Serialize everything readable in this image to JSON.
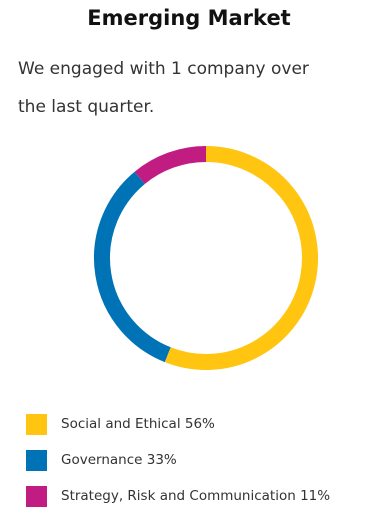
{
  "header": {
    "title": "Emerging Market",
    "intro_line1": "We engaged with 1 company over",
    "intro_line2": "the last quarter."
  },
  "legend": [
    "Social and Ethical 56%",
    "Governance 33%",
    "Strategy, Risk and Communication 11%"
  ],
  "chart_data": {
    "type": "pie",
    "style": "donut",
    "legend_position": "bottom-left",
    "categories": [
      "Social and Ethical",
      "Governance",
      "Strategy, Risk and Communication"
    ],
    "values": [
      56,
      33,
      11
    ],
    "colors": [
      "#ffc510",
      "#0073b7",
      "#c01c82"
    ]
  }
}
